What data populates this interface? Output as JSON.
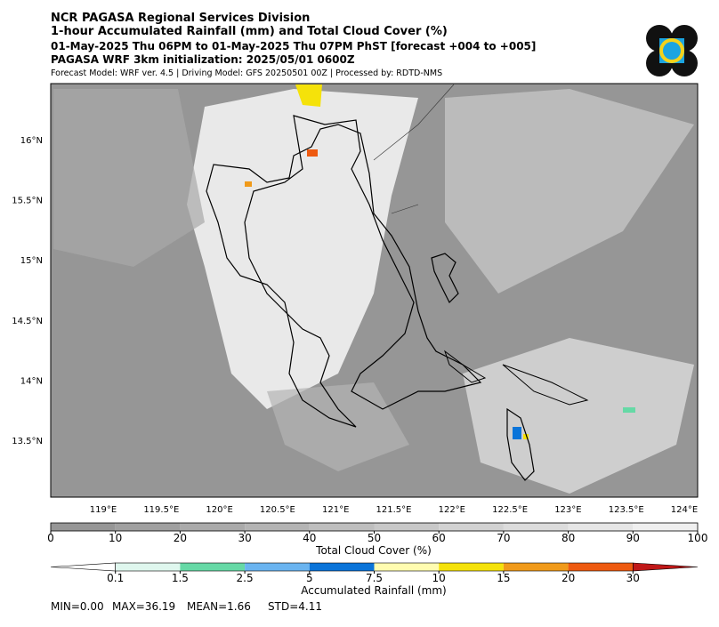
{
  "header": {
    "lines": [
      "NCR PAGASA Regional Services Division",
      "1-hour Accumulated Rainfall (mm) and Total Cloud Cover (%)",
      "01-May-2025 Thu 06PM to 01-May-2025 Thu 07PM PhST [forecast +004 to +005]",
      "PAGASA WRF 3km initialization: 2025/05/01 0600Z",
      "Forecast Model: WRF ver. 4.5 | Driving Model: GFS 20250501 00Z | Processed by: RDTD-NMS"
    ]
  },
  "map": {
    "lat_labels": [
      "16°N",
      "15.5°N",
      "15°N",
      "14.5°N",
      "14°N",
      "13.5°N"
    ],
    "lon_labels": [
      "119°E",
      "119.5°E",
      "120°E",
      "120.5°E",
      "121°E",
      "121.5°E",
      "122°E",
      "122.5°E",
      "123°E",
      "123.5°E",
      "124°E"
    ]
  },
  "cloud_colorbar": {
    "ticks": [
      0,
      10,
      20,
      30,
      40,
      50,
      60,
      70,
      80,
      90,
      100
    ],
    "label": "Total Cloud Cover (%)",
    "colors": [
      "#969696",
      "#a0a0a0",
      "#aaaaaa",
      "#b4b4b4",
      "#bebebe",
      "#c8c8c8",
      "#d2d2d2",
      "#dcdcdc",
      "#e6e6e6",
      "#f0f0f0"
    ]
  },
  "rain_colorbar": {
    "ticks": [
      0.1,
      1.5,
      2.5,
      5,
      7.5,
      10,
      15,
      20,
      30
    ],
    "label": "Accumulated Rainfall (mm)",
    "colors": [
      "#ffffff",
      "#dff7ee",
      "#66d9a6",
      "#6ab4f0",
      "#0a74d9",
      "#fffcb0",
      "#f5e20a",
      "#f09a1a",
      "#ee5a10",
      "#c01818"
    ]
  },
  "stats": [
    "MIN=0.00",
    "MAX=36.19",
    "MEAN=1.66",
    "STD=4.11"
  ]
}
